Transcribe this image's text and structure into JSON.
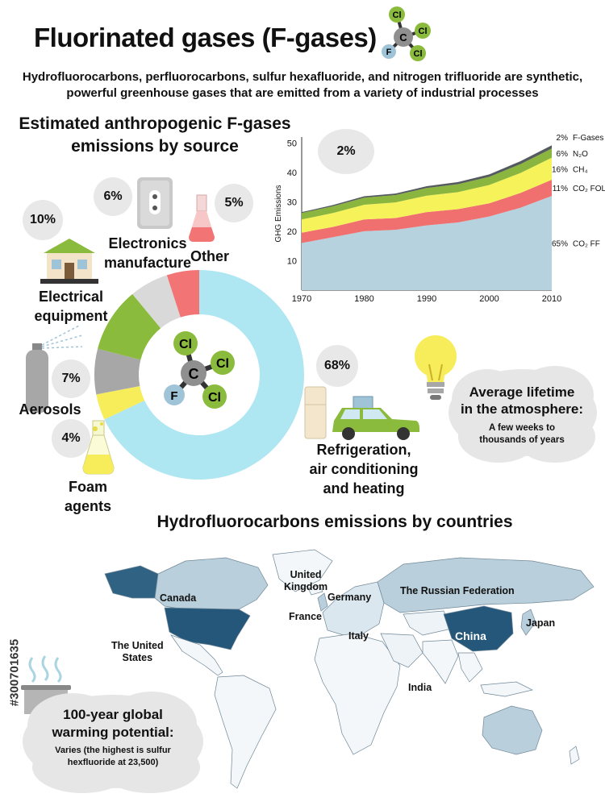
{
  "header": {
    "title": "Fluorinated gases (F-gases)",
    "subtitle_line1": "Hydrofluorocarbons, perfluorocarbons, sulfur hexafluoride, and nitrogen trifluoride are synthetic,",
    "subtitle_line2": "powerful greenhouse gases that are emitted from a variety of industrial processes"
  },
  "molecule": {
    "center": "C",
    "atoms": [
      "Cl",
      "Cl",
      "Cl",
      "F"
    ]
  },
  "sources_section": {
    "title_line1": "Estimated anthropogenic F-gases",
    "title_line2": "emissions by source",
    "items": [
      {
        "label_line1": "Electrical",
        "label_line2": "equipment",
        "percent": "10%"
      },
      {
        "label_line1": "Electronics",
        "label_line2": "manufacture",
        "percent": "6%"
      },
      {
        "label_line1": "Other",
        "label_line2": "",
        "percent": "5%"
      },
      {
        "label_line1": "Aerosols",
        "label_line2": "",
        "percent": "7%"
      },
      {
        "label_line1": "Foam",
        "label_line2": "agents",
        "percent": "4%"
      },
      {
        "label_line1": "Refrigeration,",
        "label_line2": "air conditioning",
        "label_line3": "and heating",
        "percent": "68%"
      }
    ]
  },
  "chart_data": [
    {
      "type": "pie",
      "categories": [
        "Refrigeration, air conditioning and heating",
        "Foam agents",
        "Aerosols",
        "Electrical equipment",
        "Electronics manufacture",
        "Other"
      ],
      "values": [
        68,
        4,
        7,
        10,
        6,
        5
      ],
      "colors": [
        "#aee6f2",
        "#f7ec5a",
        "#a7a7a7",
        "#8bbb3c",
        "#d9d9d9",
        "#f27474"
      ]
    },
    {
      "type": "area",
      "ylabel": "GHG Emissions",
      "xlabel": "",
      "x": [
        1970,
        1975,
        1980,
        1985,
        1990,
        1995,
        2000,
        2005,
        2010
      ],
      "xticks": [
        "1970",
        "1980",
        "1990",
        "2000",
        "2010"
      ],
      "yticks": [
        "10",
        "20",
        "30",
        "40",
        "50"
      ],
      "ylim": [
        0,
        52
      ],
      "xlim": [
        1970,
        2010
      ],
      "series": [
        {
          "name": "CO₂ FF",
          "share": "65%",
          "color": "#b6d2de",
          "values": [
            16,
            18,
            20,
            20.5,
            22,
            23,
            25,
            28,
            32
          ]
        },
        {
          "name": "CO₂ FOLU",
          "share": "11%",
          "color": "#f07070",
          "values": [
            3.5,
            3.5,
            4,
            4,
            4.5,
            4.5,
            4.5,
            5,
            5.5
          ]
        },
        {
          "name": "CH₄",
          "share": "16%",
          "color": "#f6f25a",
          "values": [
            4.5,
            4.7,
            5,
            5.3,
            5.6,
            5.8,
            6.2,
            6.8,
            7.5
          ]
        },
        {
          "name": "N₂O",
          "share": "6%",
          "color": "#8ab53e",
          "values": [
            2.2,
            2.3,
            2.4,
            2.5,
            2.6,
            2.7,
            2.8,
            3,
            3.1
          ]
        },
        {
          "name": "F-Gases",
          "share": "2%",
          "color": "#555a5e",
          "values": [
            0.3,
            0.4,
            0.5,
            0.5,
            0.6,
            0.7,
            0.8,
            1.0,
            1.1
          ]
        }
      ]
    }
  ],
  "bubbles": {
    "fgas_share": "2%"
  },
  "lifetime": {
    "title_line1": "Average lifetime",
    "title_line2": "in the atmosphere:",
    "text_line1": "A few weeks to",
    "text_line2": "thousands of years"
  },
  "countries_section": {
    "title": "Hydrofluorocarbons emissions by countries",
    "countries": {
      "canada": "Canada",
      "us_line1": "The United",
      "us_line2": "States",
      "uk_line1": "United",
      "uk_line2": "Kingdom",
      "germany": "Germany",
      "france": "France",
      "italy": "Italy",
      "russia": "The Russian Federation",
      "china": "China",
      "japan": "Japan",
      "india": "India"
    }
  },
  "gwp": {
    "title_line1": "100-year global",
    "title_line2": "warming potential:",
    "text_line1": "Varies (the highest is sulfur",
    "text_line2": "hexfluoride at 23,500)"
  },
  "watermark_id": "#300701635"
}
